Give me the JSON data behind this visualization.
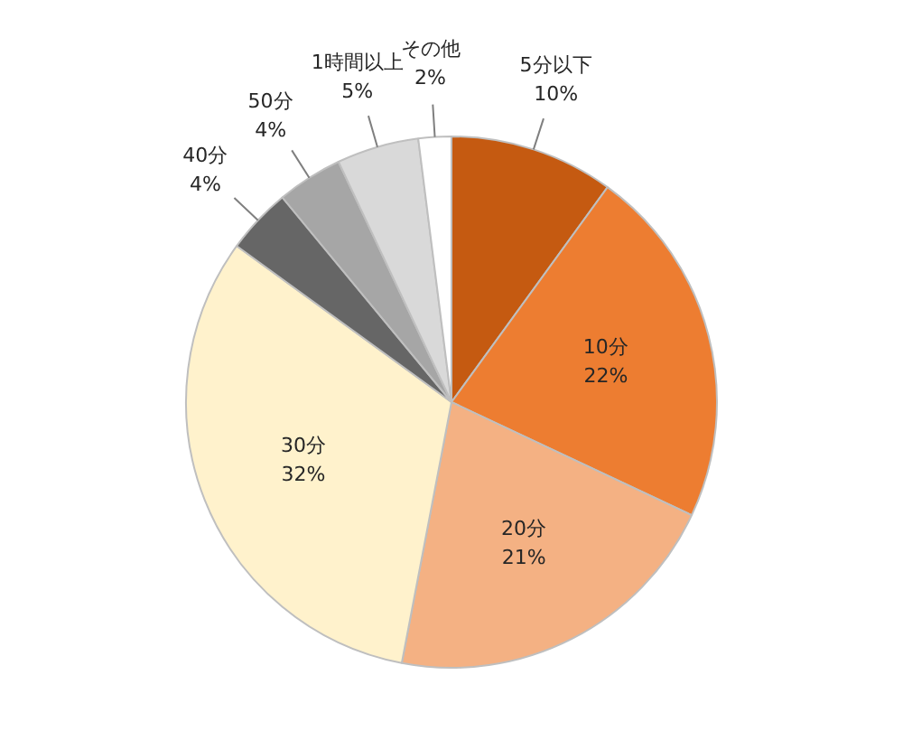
{
  "chart_data": {
    "type": "pie",
    "categories": [
      "5分以下",
      "10分",
      "20分",
      "30分",
      "40分",
      "50分",
      "1時間以上",
      "その他"
    ],
    "values": [
      10,
      22,
      21,
      32,
      4,
      4,
      5,
      2
    ],
    "value_labels": [
      "10%",
      "22%",
      "21%",
      "32%",
      "4%",
      "4%",
      "5%",
      "2%"
    ],
    "colors": [
      "#c55a11",
      "#ed7d31",
      "#f4b183",
      "#fff2cc",
      "#666666",
      "#a6a6a6",
      "#d9d9d9",
      "#ffffff"
    ],
    "legend": false
  }
}
